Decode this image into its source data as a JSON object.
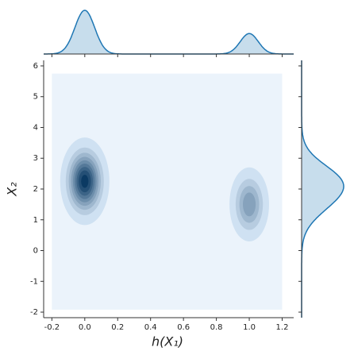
{
  "chart_data": {
    "type": "kde-joint",
    "xlabel": "h(X₁)",
    "ylabel": "X₂",
    "xlim": [
      -0.25,
      1.27
    ],
    "ylim": [
      -2.18,
      6.18
    ],
    "xticks": [
      -0.2,
      {
        "value": 0,
        "label": "0.0"
      },
      0.2,
      0.4,
      0.6,
      0.8,
      {
        "value": 1,
        "label": "1.0"
      },
      1.2
    ],
    "yticks": [
      -2,
      -1,
      0,
      1,
      2,
      3,
      4,
      5,
      6
    ],
    "grid_extent": {
      "x": [
        -0.2,
        1.2
      ],
      "y": [
        -1.92,
        5.75
      ]
    },
    "color": "#1f77b4",
    "components": [
      {
        "x": 0,
        "y": 2.25,
        "sx": 0.06,
        "sy": 0.57,
        "weight": 0.7
      },
      {
        "x": 1,
        "y": 1.5,
        "sx": 0.055,
        "sy": 0.55,
        "weight": 0.3
      }
    ]
  }
}
